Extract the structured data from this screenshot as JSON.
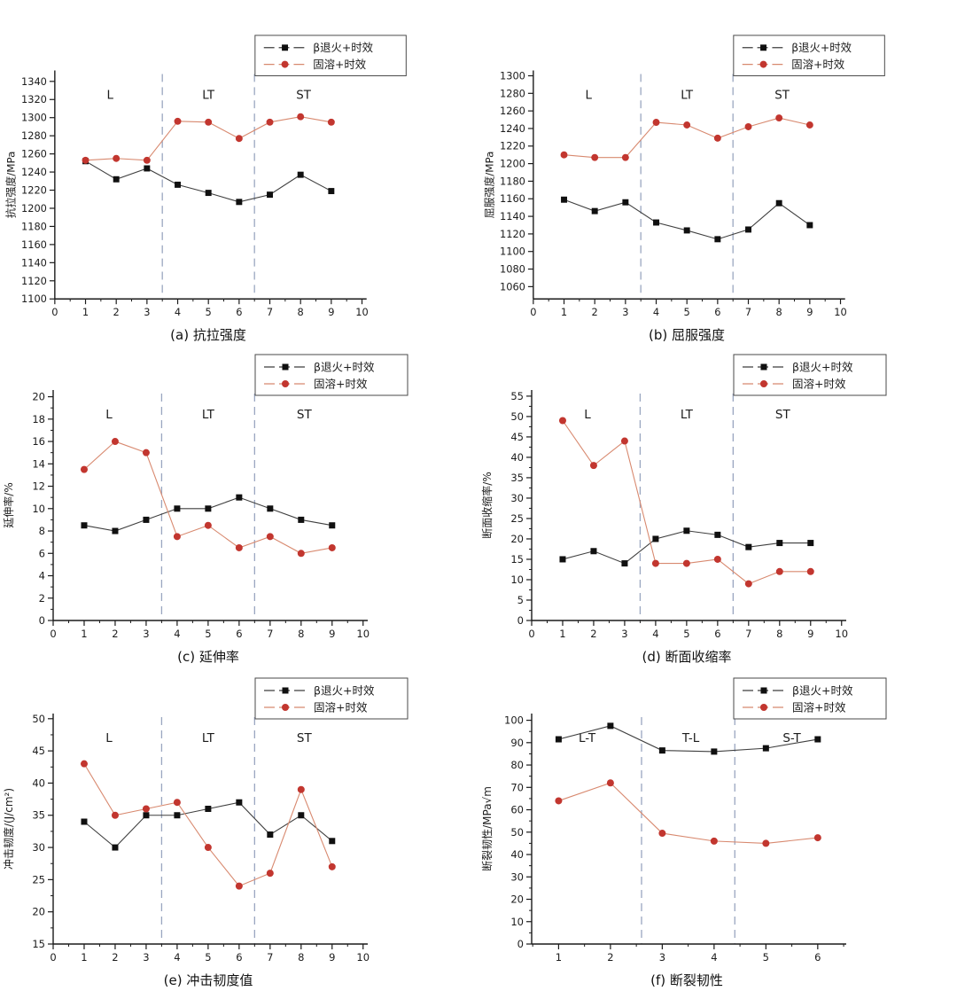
{
  "page": {
    "background": "#ffffff"
  },
  "legend": {
    "items": [
      {
        "key": "beta-anneal-aging",
        "label": "β退火+时效",
        "marker": "square",
        "marker_color": "#101010",
        "line_color": "#3f3f3f"
      },
      {
        "key": "solution-aging",
        "label": "固溶+时效",
        "marker": "circle",
        "marker_color": "#c2362f",
        "line_color": "#d8896f"
      }
    ]
  },
  "divider_color": "#9aa6c0",
  "axis_color": "#1a1a1a",
  "chart_data": [
    {
      "id": "a",
      "type": "line",
      "caption": "(a) 抗拉强度",
      "ylabel": "抗拉强度/MPa",
      "xlim": [
        0,
        10.15
      ],
      "ylim": [
        1100,
        1352
      ],
      "xminor": 0.5,
      "yminor": null,
      "xticks": [
        0,
        1,
        2,
        3,
        4,
        5,
        6,
        7,
        8,
        9,
        10
      ],
      "yticks": [
        1100,
        1120,
        1140,
        1160,
        1180,
        1200,
        1220,
        1240,
        1260,
        1280,
        1300,
        1320,
        1340
      ],
      "x": [
        1,
        2,
        3,
        4,
        5,
        6,
        7,
        8,
        9
      ],
      "dividers": [
        3.5,
        6.5
      ],
      "regions": [
        {
          "label": "L",
          "x": 1.8
        },
        {
          "label": "LT",
          "x": 5
        },
        {
          "label": "ST",
          "x": 8.1
        }
      ],
      "series": [
        {
          "name": "β退火+时效",
          "values": [
            1252,
            1232,
            1244,
            1226,
            1217,
            1207,
            1215,
            1237,
            1219
          ]
        },
        {
          "name": "固溶+时效",
          "values": [
            1253,
            1255,
            1253,
            1296,
            1295,
            1277,
            1295,
            1301,
            1295
          ]
        }
      ]
    },
    {
      "id": "b",
      "type": "line",
      "caption": "(b) 屈服强度",
      "ylabel": "屈服强度/MPa",
      "xlim": [
        0,
        10.15
      ],
      "ylim": [
        1046,
        1306
      ],
      "xminor": 0.5,
      "yminor": null,
      "xticks": [
        0,
        1,
        2,
        3,
        4,
        5,
        6,
        7,
        8,
        9,
        10
      ],
      "yticks": [
        1060,
        1080,
        1100,
        1120,
        1140,
        1160,
        1180,
        1200,
        1220,
        1240,
        1260,
        1280,
        1300
      ],
      "x": [
        1,
        2,
        3,
        4,
        5,
        6,
        7,
        8,
        9
      ],
      "dividers": [
        3.5,
        6.5
      ],
      "regions": [
        {
          "label": "L",
          "x": 1.8
        },
        {
          "label": "LT",
          "x": 5
        },
        {
          "label": "ST",
          "x": 8.1
        }
      ],
      "series": [
        {
          "name": "β退火+时效",
          "values": [
            1159,
            1146,
            1156,
            1133,
            1124,
            1114,
            1125,
            1155,
            1130
          ]
        },
        {
          "name": "固溶+时效",
          "values": [
            1210,
            1207,
            1207,
            1247,
            1244,
            1229,
            1242,
            1252,
            1244
          ]
        }
      ]
    },
    {
      "id": "c",
      "type": "line",
      "caption": "(c) 延伸率",
      "ylabel": "延伸率/%",
      "xlim": [
        0,
        10.15
      ],
      "ylim": [
        0,
        20.6
      ],
      "xminor": 0.5,
      "yminor": 1,
      "xticks": [
        0,
        1,
        2,
        3,
        4,
        5,
        6,
        7,
        8,
        9,
        10
      ],
      "yticks": [
        0,
        2,
        4,
        6,
        8,
        10,
        12,
        14,
        16,
        18,
        20
      ],
      "x": [
        1,
        2,
        3,
        4,
        5,
        6,
        7,
        8,
        9
      ],
      "dividers": [
        3.5,
        6.5
      ],
      "regions": [
        {
          "label": "L",
          "x": 1.8
        },
        {
          "label": "LT",
          "x": 5
        },
        {
          "label": "ST",
          "x": 8.1
        }
      ],
      "series": [
        {
          "name": "β退火+时效",
          "values": [
            8.5,
            8,
            9,
            10,
            10,
            11,
            10,
            9,
            8.5
          ]
        },
        {
          "name": "固溶+时效",
          "values": [
            13.5,
            16,
            15,
            7.5,
            8.5,
            6.5,
            7.5,
            6,
            6.5
          ]
        }
      ]
    },
    {
      "id": "d",
      "type": "line",
      "caption": "(d) 断面收缩率",
      "ylabel": "断面收缩率/%",
      "xlim": [
        0,
        10.15
      ],
      "ylim": [
        0,
        56.5
      ],
      "xminor": 0.5,
      "yminor": 2.5,
      "xticks": [
        0,
        1,
        2,
        3,
        4,
        5,
        6,
        7,
        8,
        9,
        10
      ],
      "yticks": [
        0,
        5,
        10,
        15,
        20,
        25,
        30,
        35,
        40,
        45,
        50,
        55
      ],
      "x": [
        1,
        2,
        3,
        4,
        5,
        6,
        7,
        8,
        9
      ],
      "dividers": [
        3.5,
        6.5
      ],
      "regions": [
        {
          "label": "L",
          "x": 1.8
        },
        {
          "label": "LT",
          "x": 5
        },
        {
          "label": "ST",
          "x": 8.1
        }
      ],
      "series": [
        {
          "name": "β退火+时效",
          "values": [
            15,
            17,
            14,
            20,
            22,
            21,
            18,
            19,
            19
          ]
        },
        {
          "name": "固溶+时效",
          "values": [
            49,
            38,
            44,
            14,
            14,
            15,
            9,
            12,
            12
          ]
        }
      ]
    },
    {
      "id": "e",
      "type": "line",
      "caption": "(e) 冲击韧度值",
      "ylabel": "冲击韧度/(J/cm²)",
      "xlim": [
        0,
        10.15
      ],
      "ylim": [
        15,
        50.8
      ],
      "xminor": 0.5,
      "yminor": 2.5,
      "xticks": [
        0,
        1,
        2,
        3,
        4,
        5,
        6,
        7,
        8,
        9,
        10
      ],
      "yticks": [
        15,
        20,
        25,
        30,
        35,
        40,
        45,
        50
      ],
      "x": [
        1,
        2,
        3,
        4,
        5,
        6,
        7,
        8,
        9
      ],
      "dividers": [
        3.5,
        6.5
      ],
      "regions": [
        {
          "label": "L",
          "x": 1.8
        },
        {
          "label": "LT",
          "x": 5
        },
        {
          "label": "ST",
          "x": 8.1
        }
      ],
      "series": [
        {
          "name": "β退火+时效",
          "values": [
            34,
            30,
            35,
            35,
            36,
            37,
            32,
            35,
            31
          ]
        },
        {
          "name": "固溶+时效",
          "values": [
            43,
            35,
            36,
            37,
            30,
            24,
            26,
            39,
            27
          ]
        }
      ]
    },
    {
      "id": "f",
      "type": "line",
      "caption": "(f) 断裂韧性",
      "ylabel": "断裂韧性/MPa√m",
      "xlim": [
        0.48,
        6.55
      ],
      "ylim": [
        0,
        103
      ],
      "xminor": 0.5,
      "yminor": 5,
      "xticks": [
        1,
        2,
        3,
        4,
        5,
        6
      ],
      "yticks": [
        0,
        10,
        20,
        30,
        40,
        50,
        60,
        70,
        80,
        90,
        100
      ],
      "x": [
        1,
        2,
        3,
        4,
        5,
        6
      ],
      "dividers": [
        2.6,
        4.4
      ],
      "regions": [
        {
          "label": "L-T",
          "x": 1.55
        },
        {
          "label": "T-L",
          "x": 3.55
        },
        {
          "label": "S-T",
          "x": 5.5
        }
      ],
      "series": [
        {
          "name": "β退火+时效",
          "values": [
            91.5,
            97.5,
            86.5,
            86,
            87.5,
            91.5
          ]
        },
        {
          "name": "固溶+时效",
          "values": [
            64,
            72,
            49.5,
            46,
            45,
            47.5
          ]
        }
      ]
    }
  ]
}
